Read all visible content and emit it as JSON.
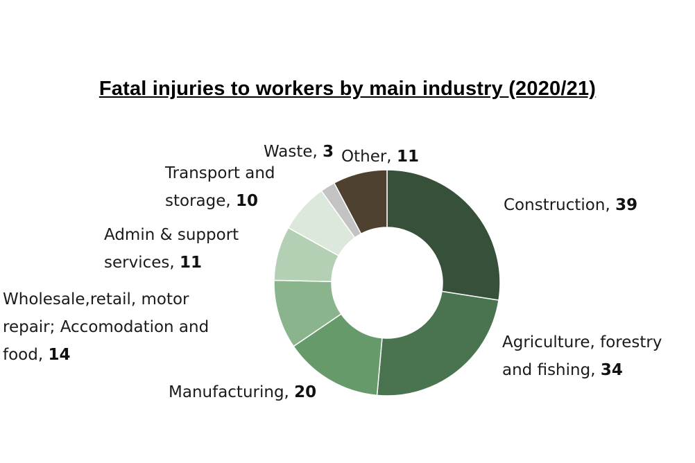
{
  "chart_data": {
    "type": "pie",
    "title": "Fatal injuries to workers by main industry (2020/21)",
    "categories": [
      "Construction",
      "Agriculture, forestry and fishing",
      "Manufacturing",
      "Wholesale,retail, motor repair; Accomodation and food",
      "Admin & support services",
      "Transport and storage",
      "Waste",
      "Other"
    ],
    "values": [
      39,
      34,
      20,
      14,
      11,
      10,
      3,
      11
    ],
    "slices": [
      {
        "name": "Construction",
        "value": 39,
        "color": "#36503a",
        "label_lines": [
          "Construction, {v}"
        ]
      },
      {
        "name": "Agriculture, forestry and fishing",
        "value": 34,
        "color": "#4a7450",
        "label_lines": [
          "Agriculture, forestry",
          "and fishing, {v}"
        ]
      },
      {
        "name": "Manufacturing",
        "value": 20,
        "color": "#679a6b",
        "label_lines": [
          "Manufacturing, {v}"
        ]
      },
      {
        "name": "Wholesale,retail, motor repair; Accomodation and food",
        "value": 14,
        "color": "#8ab58c",
        "label_lines": [
          "Wholesale,retail, motor",
          "repair; Accomodation and",
          "food, {v}"
        ]
      },
      {
        "name": "Admin & support services",
        "value": 11,
        "color": "#b4d0b4",
        "label_lines": [
          "Admin & support",
          "services, {v}"
        ]
      },
      {
        "name": "Transport and storage",
        "value": 10,
        "color": "#dde8dd",
        "label_lines": [
          "Transport and",
          "storage, {v}"
        ]
      },
      {
        "name": "Waste",
        "value": 3,
        "color": "#c3c3c3",
        "label_lines": [
          "Waste, {v}"
        ]
      },
      {
        "name": "Other",
        "value": 11,
        "color": "#4e4130",
        "label_lines": [
          "Other, {v}"
        ]
      }
    ],
    "hole": "white center",
    "legend": "none (data labels beside slices)"
  }
}
